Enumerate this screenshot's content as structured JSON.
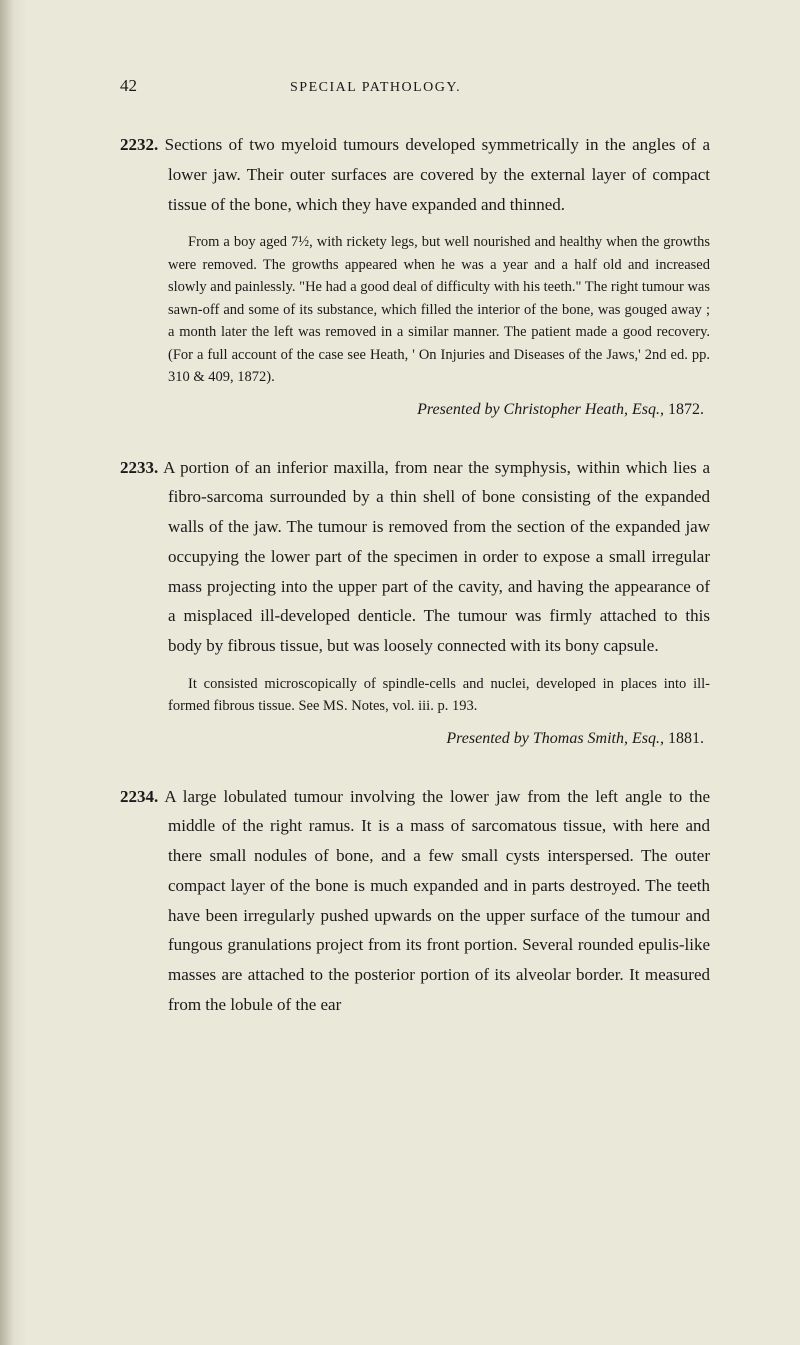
{
  "page": {
    "number": "42",
    "running_title": "SPECIAL PATHOLOGY."
  },
  "entries": [
    {
      "number": "2232.",
      "body": "Sections of two myeloid tumours developed symmetrically in the angles of a lower jaw. Their outer surfaces are covered by the external layer of compact tissue of the bone, which they have expanded and thinned.",
      "note": "From a boy aged 7½, with rickety legs, but well nourished and healthy when the growths were removed. The growths appeared when he was a year and a half old and increased slowly and painlessly. \"He had a good deal of difficulty with his teeth.\" The right tumour was sawn-off and some of its substance, which filled the interior of the bone, was gouged away ; a month later the left was removed in a similar manner. The patient made a good recovery. (For a full account of the case see Heath, ' On Injuries and Diseases of the Jaws,' 2nd ed. pp. 310 & 409, 1872).",
      "presented_prefix": "Presented by Christopher Heath, Esq.,",
      "presented_year": " 1872."
    },
    {
      "number": "2233.",
      "body": "A portion of an inferior maxilla, from near the symphysis, within which lies a fibro-sarcoma surrounded by a thin shell of bone consisting of the expanded walls of the jaw. The tumour is removed from the section of the expanded jaw occupying the lower part of the specimen in order to expose a small irregular mass projecting into the upper part of the cavity, and having the appearance of a misplaced ill-developed denticle. The tumour was firmly attached to this body by fibrous tissue, but was loosely connected with its bony capsule.",
      "note": "It consisted microscopically of spindle-cells and nuclei, developed in places into ill-formed fibrous tissue. See MS. Notes, vol. iii. p. 193.",
      "presented_prefix": "Presented by Thomas Smith, Esq.,",
      "presented_year": " 1881."
    },
    {
      "number": "2234.",
      "body": "A large lobulated tumour involving the lower jaw from the left angle to the middle of the right ramus. It is a mass of sarcomatous tissue, with here and there small nodules of bone, and a few small cysts interspersed. The outer compact layer of the bone is much expanded and in parts destroyed. The teeth have been irregularly pushed upwards on the upper surface of the tumour and fungous granulations project from its front portion. Several rounded epulis-like masses are attached to the posterior portion of its alveolar border. It measured from the lobule of the ear",
      "note": "",
      "presented_prefix": "",
      "presented_year": ""
    }
  ]
}
